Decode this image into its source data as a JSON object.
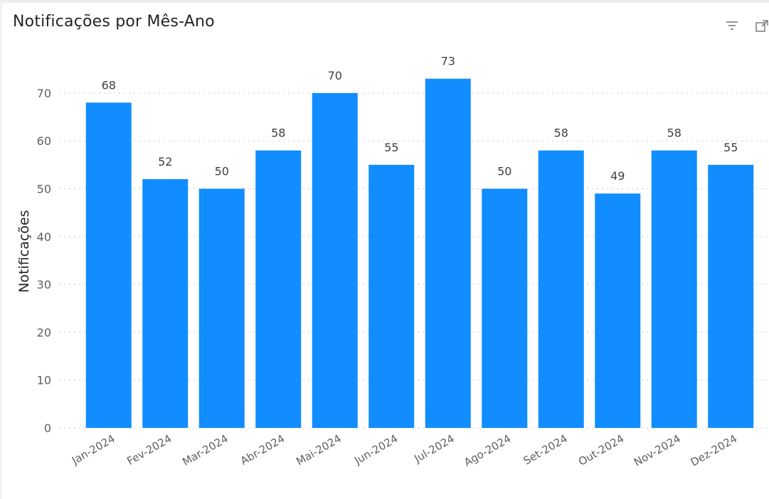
{
  "visual": {
    "title": "Notificações por Mês-Ano",
    "icons": {
      "filter": "filter-icon",
      "focus": "focus-mode-icon"
    }
  },
  "chart_data": {
    "type": "bar",
    "title": "Notificações por Mês-Ano",
    "xlabel": "",
    "ylabel": "Notificações",
    "categories": [
      "Jan-2024",
      "Fev-2024",
      "Mar-2024",
      "Abr-2024",
      "Mai-2024",
      "Jun-2024",
      "Jul-2024",
      "Ago-2024",
      "Set-2024",
      "Out-2024",
      "Nov-2024",
      "Dez-2024"
    ],
    "values": [
      68,
      52,
      50,
      58,
      70,
      55,
      73,
      50,
      58,
      49,
      58,
      55
    ],
    "ylim": [
      0,
      75
    ],
    "yticks": [
      0,
      10,
      20,
      30,
      40,
      50,
      60,
      70
    ],
    "grid": true,
    "data_labels": true,
    "bar_color": "#118DFF"
  }
}
